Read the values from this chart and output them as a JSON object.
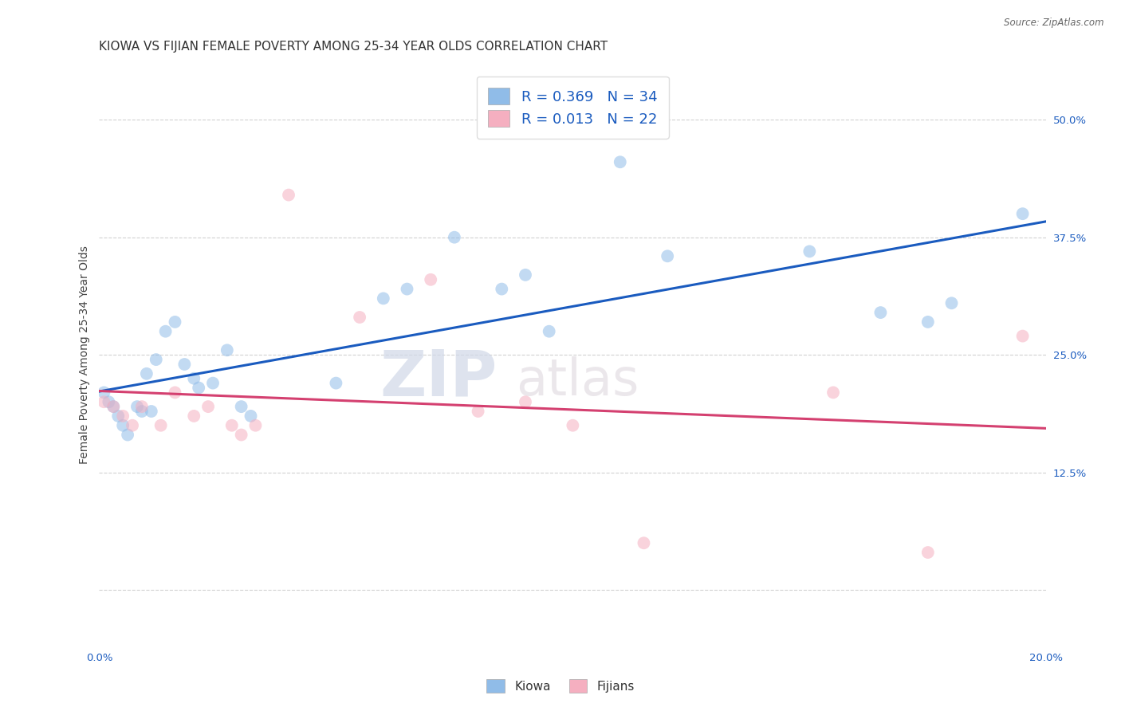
{
  "title": "KIOWA VS FIJIAN FEMALE POVERTY AMONG 25-34 YEAR OLDS CORRELATION CHART",
  "source": "Source: ZipAtlas.com",
  "ylabel": "Female Poverty Among 25-34 Year Olds",
  "xlim": [
    0.0,
    0.2
  ],
  "ylim": [
    -0.06,
    0.56
  ],
  "yticks": [
    0.0,
    0.125,
    0.25,
    0.375,
    0.5
  ],
  "ytick_labels": [
    "",
    "12.5%",
    "25.0%",
    "37.5%",
    "50.0%"
  ],
  "xticks": [
    0.0,
    0.04,
    0.08,
    0.12,
    0.16,
    0.2
  ],
  "xtick_labels": [
    "0.0%",
    "",
    "",
    "",
    "",
    "20.0%"
  ],
  "kiowa_color": "#90bce8",
  "fijian_color": "#f5afc0",
  "kiowa_line_color": "#1a5bbf",
  "fijian_line_color": "#d44070",
  "legend_text_color": "#1a5bbf",
  "watermark_zip": "ZIP",
  "watermark_atlas": "atlas",
  "kiowa_R": 0.369,
  "kiowa_N": 34,
  "fijian_R": 0.013,
  "fijian_N": 22,
  "kiowa_x": [
    0.001,
    0.002,
    0.003,
    0.004,
    0.005,
    0.006,
    0.008,
    0.009,
    0.01,
    0.011,
    0.012,
    0.014,
    0.016,
    0.018,
    0.02,
    0.021,
    0.024,
    0.027,
    0.03,
    0.032,
    0.05,
    0.06,
    0.065,
    0.075,
    0.085,
    0.09,
    0.095,
    0.11,
    0.12,
    0.15,
    0.165,
    0.175,
    0.18,
    0.195
  ],
  "kiowa_y": [
    0.21,
    0.2,
    0.195,
    0.185,
    0.175,
    0.165,
    0.195,
    0.19,
    0.23,
    0.19,
    0.245,
    0.275,
    0.285,
    0.24,
    0.225,
    0.215,
    0.22,
    0.255,
    0.195,
    0.185,
    0.22,
    0.31,
    0.32,
    0.375,
    0.32,
    0.335,
    0.275,
    0.455,
    0.355,
    0.36,
    0.295,
    0.285,
    0.305,
    0.4
  ],
  "fijian_x": [
    0.001,
    0.003,
    0.005,
    0.007,
    0.009,
    0.013,
    0.016,
    0.02,
    0.023,
    0.028,
    0.03,
    0.033,
    0.04,
    0.055,
    0.07,
    0.08,
    0.09,
    0.1,
    0.115,
    0.155,
    0.175,
    0.195
  ],
  "fijian_y": [
    0.2,
    0.195,
    0.185,
    0.175,
    0.195,
    0.175,
    0.21,
    0.185,
    0.195,
    0.175,
    0.165,
    0.175,
    0.42,
    0.29,
    0.33,
    0.19,
    0.2,
    0.175,
    0.05,
    0.21,
    0.04,
    0.27
  ],
  "background_color": "#ffffff",
  "grid_color": "#cccccc",
  "title_fontsize": 11,
  "label_fontsize": 10,
  "tick_fontsize": 9.5,
  "marker_size": 130,
  "marker_alpha": 0.55,
  "line_width": 2.2
}
